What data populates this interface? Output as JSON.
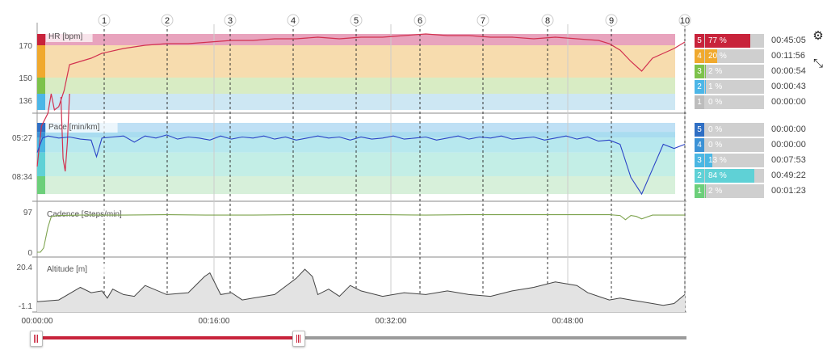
{
  "colors": {
    "hr_line": "#d2314f",
    "pace_line": "#2b44c7",
    "cadence_line": "#7da34e",
    "altitude_fill": "#e3e3e3",
    "altitude_line": "#444444",
    "slider_active": "#c8233b",
    "slider_inactive": "#9b9b9b"
  },
  "icons": {
    "settings": "gear-icon",
    "fullscreen": "expand-icon"
  },
  "time_axis": {
    "ticks": [
      "00:00:00",
      "00:16:00",
      "00:32:00",
      "00:48:00"
    ]
  },
  "slider": {
    "position_fraction": 0.403
  },
  "hr_zone_bars": [
    {
      "zone": "5",
      "pct_label": "77 %",
      "pct": 77,
      "time": "00:45:05",
      "color": "#c8233b"
    },
    {
      "zone": "4",
      "pct_label": "20 %",
      "pct": 20,
      "time": "00:11:56",
      "color": "#f0a92e"
    },
    {
      "zone": "3",
      "pct_label": "2 %",
      "pct": 2,
      "time": "00:00:54",
      "color": "#7dc24b"
    },
    {
      "zone": "2",
      "pct_label": "1 %",
      "pct": 1,
      "time": "00:00:43",
      "color": "#4cb6e7"
    },
    {
      "zone": "1",
      "pct_label": "0 %",
      "pct": 0,
      "time": "00:00:00",
      "color": "#bdbdbd"
    }
  ],
  "pace_zone_bars": [
    {
      "zone": "5",
      "pct_label": "0 %",
      "pct": 0,
      "time": "00:00:00",
      "color": "#2f6fc4"
    },
    {
      "zone": "4",
      "pct_label": "0 %",
      "pct": 0,
      "time": "00:00:00",
      "color": "#3c92d6"
    },
    {
      "zone": "3",
      "pct_label": "13 %",
      "pct": 13,
      "time": "00:07:53",
      "color": "#4bb7e3"
    },
    {
      "zone": "2",
      "pct_label": "84 %",
      "pct": 84,
      "time": "00:49:22",
      "color": "#5fd1d6"
    },
    {
      "zone": "1",
      "pct_label": "2 %",
      "pct": 2,
      "time": "00:01:23",
      "color": "#6ccf7a"
    }
  ],
  "chart_data": [
    {
      "type": "line",
      "ylabel": "HR [bpm]",
      "y_ticks": [
        "170",
        "150",
        "136"
      ],
      "x_km_markers": [
        "1",
        "2",
        "3",
        "4",
        "5",
        "6",
        "7",
        "8",
        "9",
        "10"
      ],
      "zones": [
        {
          "zone": "5",
          "color": "#e8a3bd"
        },
        {
          "zone": "4",
          "color": "#f7dcae"
        },
        {
          "zone": "3",
          "color": "#d8ecc4"
        },
        {
          "zone": "2",
          "color": "#cde7f3"
        },
        {
          "zone": "1",
          "color": "#ffffff"
        }
      ],
      "series": [
        {
          "x_min": [
            0,
            0.4,
            1,
            1.3,
            1.6,
            2,
            2.5,
            3,
            4,
            5,
            6,
            8,
            10,
            12,
            14,
            16,
            18,
            20,
            22,
            24,
            26,
            28,
            30,
            32,
            34,
            36,
            38,
            40,
            42,
            44,
            46,
            48,
            50,
            52,
            53,
            54,
            55,
            56,
            57,
            58,
            59,
            60
          ],
          "y": [
            95,
            120,
            128,
            140,
            130,
            132,
            142,
            158,
            160,
            162,
            165,
            168,
            170,
            171,
            171,
            172,
            173,
            173,
            174,
            174,
            175,
            174,
            175,
            175,
            176,
            177,
            176,
            176,
            175,
            175,
            174,
            175,
            174,
            173,
            171,
            167,
            160,
            154,
            162,
            165,
            168,
            172
          ]
        },
        {
          "x_min": [
            2.2,
            2.4,
            2.6,
            2.8,
            3.0
          ],
          "y": [
            138,
            100,
            92,
            110,
            140
          ]
        }
      ]
    },
    {
      "type": "line",
      "ylabel": "Pace [min/km]",
      "y_ticks": [
        "05:27",
        "08:34"
      ],
      "series": [
        {
          "x_min": [
            0,
            0.5,
            1,
            2,
            3,
            4,
            5,
            5.5,
            6,
            7,
            8,
            9,
            10,
            11,
            12,
            13,
            14,
            15,
            16,
            17,
            18,
            19,
            20,
            21,
            22,
            23,
            24,
            25,
            26,
            27,
            28,
            29,
            30,
            31,
            32,
            33,
            34,
            35,
            36,
            37,
            38,
            39,
            40,
            41,
            42,
            43,
            44,
            45,
            46,
            47,
            48,
            49,
            50,
            51,
            52,
            53,
            54,
            55,
            56,
            57,
            58,
            59,
            60
          ],
          "y_sec_per_km": [
            400,
            330,
            320,
            330,
            325,
            335,
            340,
            420,
            330,
            325,
            320,
            350,
            320,
            330,
            315,
            335,
            325,
            330,
            340,
            320,
            335,
            325,
            330,
            320,
            335,
            325,
            340,
            330,
            320,
            330,
            325,
            340,
            325,
            335,
            330,
            320,
            335,
            330,
            325,
            340,
            330,
            320,
            335,
            325,
            330,
            320,
            335,
            330,
            325,
            340,
            330,
            320,
            335,
            325,
            345,
            340,
            360,
            520,
            600,
            480,
            360,
            380,
            360
          ]
        }
      ]
    },
    {
      "type": "line",
      "ylabel": "Cadence [Steps/min]",
      "y_ticks": [
        "97",
        "0"
      ],
      "ylim": [
        0,
        97
      ],
      "series": [
        {
          "x_min": [
            0,
            0.3,
            0.6,
            1,
            1.3,
            1.6,
            2,
            4,
            8,
            12,
            16,
            20,
            24,
            28,
            32,
            36,
            40,
            44,
            48,
            52,
            53,
            54,
            54.5,
            55,
            55.5,
            56,
            57,
            58,
            60
          ],
          "y": [
            0,
            0,
            10,
            60,
            85,
            87,
            88,
            89,
            89,
            90,
            89,
            89,
            90,
            90,
            90,
            89,
            90,
            90,
            90,
            90,
            90,
            88,
            78,
            88,
            86,
            80,
            89,
            89,
            89
          ]
        }
      ]
    },
    {
      "type": "area",
      "ylabel": "Altitude [m]",
      "y_ticks": [
        "20.4",
        "-1.1"
      ],
      "ylim": [
        -1.1,
        20.4
      ],
      "series": [
        {
          "x_min": [
            0,
            2,
            4,
            5,
            6,
            6.5,
            7,
            8,
            9,
            10,
            12,
            14,
            15.5,
            16,
            17,
            18,
            19,
            20,
            22,
            24,
            24.8,
            25.5,
            26,
            27,
            28,
            29,
            30,
            32,
            34,
            36,
            38,
            40,
            42,
            44,
            46,
            48,
            50,
            51,
            52,
            53,
            54,
            55,
            56,
            57,
            58,
            59,
            60
          ],
          "y": [
            1,
            2,
            9,
            6,
            7,
            3,
            8,
            5,
            4,
            10,
            5,
            6,
            15,
            17,
            5,
            6,
            2,
            3,
            5,
            14,
            19,
            15,
            5,
            8,
            4,
            10,
            7,
            4,
            6,
            5,
            7,
            5,
            4,
            7,
            9,
            12,
            10,
            6,
            4,
            2,
            3,
            2,
            1,
            0,
            -1,
            0,
            5
          ]
        }
      ]
    }
  ]
}
